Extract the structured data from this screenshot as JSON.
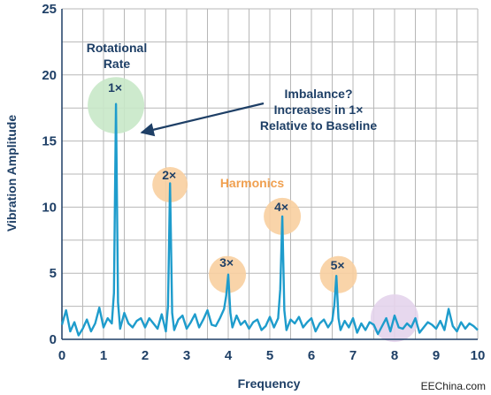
{
  "chart_data": {
    "type": "line",
    "xlabel": "Frequency",
    "ylabel": "Vibration Amplitude",
    "xlim": [
      0,
      10
    ],
    "ylim": [
      0,
      25
    ],
    "xticks": [
      "0",
      "1",
      "2",
      "3",
      "4",
      "5",
      "6",
      "7",
      "8",
      "9",
      "10"
    ],
    "yticks": [
      "0",
      "5",
      "10",
      "15",
      "20",
      "25"
    ],
    "grid": true,
    "series": [
      {
        "color": "#1e9ccc",
        "x": [
          0,
          0.1,
          0.2,
          0.3,
          0.4,
          0.5,
          0.6,
          0.7,
          0.8,
          0.9,
          1.0,
          1.1,
          1.2,
          1.25,
          1.3,
          1.35,
          1.4,
          1.5,
          1.6,
          1.7,
          1.8,
          1.9,
          2.0,
          2.1,
          2.2,
          2.3,
          2.4,
          2.5,
          2.55,
          2.6,
          2.65,
          2.7,
          2.8,
          2.9,
          3.0,
          3.1,
          3.2,
          3.3,
          3.4,
          3.5,
          3.6,
          3.7,
          3.8,
          3.9,
          3.95,
          4.0,
          4.05,
          4.1,
          4.2,
          4.3,
          4.4,
          4.5,
          4.6,
          4.7,
          4.8,
          4.9,
          5.0,
          5.1,
          5.2,
          5.25,
          5.3,
          5.35,
          5.4,
          5.5,
          5.6,
          5.7,
          5.8,
          5.9,
          6.0,
          6.1,
          6.2,
          6.3,
          6.4,
          6.5,
          6.55,
          6.6,
          6.65,
          6.7,
          6.8,
          6.9,
          7.0,
          7.1,
          7.2,
          7.3,
          7.4,
          7.5,
          7.6,
          7.7,
          7.8,
          7.9,
          8.0,
          8.1,
          8.2,
          8.3,
          8.4,
          8.5,
          8.6,
          8.7,
          8.8,
          8.9,
          9.0,
          9.1,
          9.2,
          9.3,
          9.4,
          9.5,
          9.6,
          9.7,
          9.8,
          9.9,
          10.0
        ],
        "y": [
          1.1,
          2.2,
          0.6,
          1.3,
          0.3,
          0.8,
          1.5,
          0.6,
          1.2,
          2.4,
          0.9,
          1.6,
          1.2,
          3.5,
          17.8,
          2.8,
          0.8,
          2.0,
          1.2,
          0.9,
          1.4,
          1.6,
          0.9,
          1.6,
          1.2,
          0.8,
          1.9,
          0.6,
          2.5,
          11.8,
          2.0,
          0.7,
          1.5,
          1.8,
          0.8,
          1.3,
          1.9,
          0.9,
          1.5,
          2.2,
          1.1,
          1.0,
          1.6,
          2.3,
          3.3,
          4.9,
          2.0,
          0.9,
          1.8,
          1.1,
          1.4,
          0.8,
          1.3,
          1.5,
          0.7,
          1.0,
          1.7,
          0.9,
          1.6,
          3.8,
          9.3,
          2.2,
          0.7,
          1.5,
          1.2,
          1.7,
          0.9,
          1.3,
          1.6,
          0.6,
          1.2,
          1.5,
          0.9,
          1.4,
          2.6,
          4.8,
          1.6,
          0.7,
          1.4,
          0.9,
          1.6,
          0.5,
          1.2,
          0.7,
          1.3,
          1.1,
          0.4,
          1.0,
          1.6,
          0.6,
          1.8,
          0.9,
          0.8,
          1.2,
          0.9,
          1.6,
          0.5,
          0.9,
          1.3,
          1.1,
          0.8,
          1.4,
          0.7,
          2.3,
          1.0,
          0.6,
          1.3,
          0.8,
          1.2,
          1.0,
          0.7
        ]
      }
    ],
    "highlights": [
      {
        "x": 1.3,
        "y": 17.7,
        "color": "#c8e8c8",
        "label": "1×"
      },
      {
        "x": 2.6,
        "y": 11.7,
        "color": "#f8cfa0",
        "label": "2×"
      },
      {
        "x": 3.98,
        "y": 4.9,
        "color": "#f8cfa0",
        "label": "3×"
      },
      {
        "x": 5.3,
        "y": 9.3,
        "color": "#f8cfa0",
        "label": "4×"
      },
      {
        "x": 6.65,
        "y": 4.9,
        "color": "#f8cfa0",
        "label": "5×"
      },
      {
        "x": 8.0,
        "y": 1.6,
        "color": "#e4d4ec",
        "label": ""
      }
    ],
    "annotations": {
      "rotational_rate": [
        "Rotational",
        "Rate"
      ],
      "imbalance": [
        "Imbalance?",
        "Increases in 1×",
        "Relative to Baseline"
      ],
      "harmonics": "Harmonics"
    },
    "credit": "EEChina.com"
  }
}
